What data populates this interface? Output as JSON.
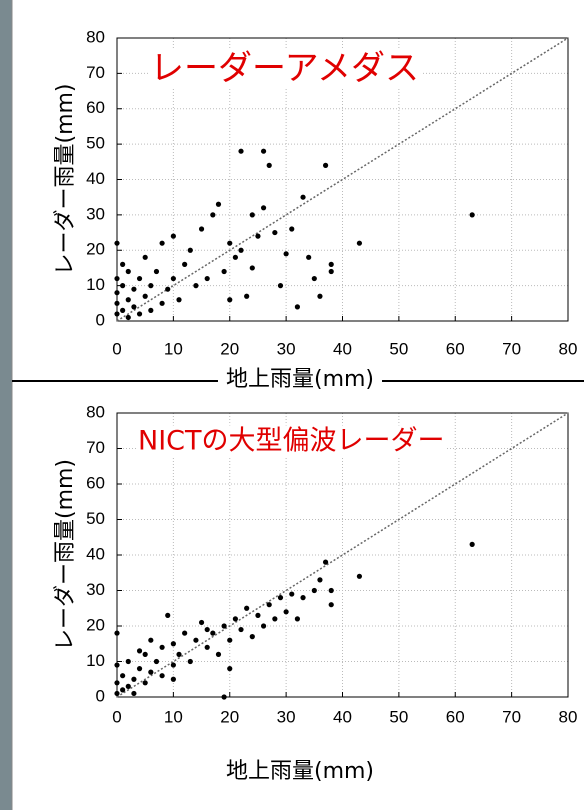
{
  "chart_data": [
    {
      "type": "scatter",
      "annotation": "レーダーアメダス",
      "xlabel": "地上雨量(mm)",
      "ylabel": "レーダー雨量(mm)",
      "color": "#000000",
      "grid": true,
      "xlim": [
        0,
        80
      ],
      "ylim": [
        0,
        80
      ],
      "xticks": [
        0,
        10,
        20,
        30,
        40,
        50,
        60,
        70,
        80
      ],
      "yticks": [
        0,
        10,
        20,
        30,
        40,
        50,
        60,
        70,
        80
      ],
      "x": [
        0,
        0,
        0,
        0,
        0,
        1,
        1,
        1,
        2,
        2,
        2,
        3,
        3,
        4,
        4,
        5,
        5,
        6,
        6,
        7,
        8,
        8,
        9,
        10,
        10,
        11,
        12,
        13,
        14,
        15,
        16,
        17,
        18,
        19,
        20,
        21,
        22,
        22,
        23,
        24,
        25,
        26,
        26,
        27,
        28,
        29,
        30,
        31,
        32,
        33,
        34,
        35,
        37,
        38,
        38,
        43,
        63,
        36,
        20,
        24
      ],
      "values": [
        2,
        5,
        8,
        12,
        22,
        3,
        10,
        16,
        1,
        6,
        14,
        4,
        9,
        2,
        12,
        7,
        18,
        3,
        10,
        14,
        5,
        22,
        9,
        12,
        24,
        6,
        16,
        20,
        10,
        26,
        12,
        30,
        33,
        14,
        22,
        18,
        20,
        48,
        7,
        30,
        24,
        48,
        32,
        44,
        25,
        10,
        19,
        26,
        4,
        35,
        18,
        12,
        44,
        16,
        14,
        22,
        30,
        7,
        6,
        15
      ]
    },
    {
      "type": "scatter",
      "annotation": "NICTの大型偏波レーダー",
      "xlabel": "地上雨量(mm)",
      "ylabel": "レーダー雨量(mm)",
      "color": "#000000",
      "grid": true,
      "xlim": [
        0,
        80
      ],
      "ylim": [
        0,
        80
      ],
      "xticks": [
        0,
        10,
        20,
        30,
        40,
        50,
        60,
        70,
        80
      ],
      "yticks": [
        0,
        10,
        20,
        30,
        40,
        50,
        60,
        70,
        80
      ],
      "x": [
        0,
        0,
        0,
        0,
        1,
        1,
        2,
        2,
        3,
        3,
        4,
        5,
        5,
        6,
        7,
        8,
        8,
        9,
        10,
        10,
        11,
        12,
        13,
        14,
        15,
        16,
        17,
        18,
        19,
        20,
        21,
        22,
        23,
        24,
        25,
        26,
        27,
        28,
        29,
        30,
        31,
        32,
        33,
        35,
        36,
        37,
        38,
        38,
        43,
        63,
        20,
        16,
        10,
        19,
        6,
        4
      ],
      "values": [
        1,
        4,
        9,
        18,
        2,
        6,
        3,
        10,
        1,
        5,
        8,
        4,
        12,
        7,
        10,
        6,
        14,
        23,
        9,
        15,
        12,
        18,
        10,
        16,
        21,
        14,
        18,
        12,
        20,
        16,
        22,
        19,
        25,
        17,
        23,
        20,
        26,
        22,
        28,
        24,
        29,
        22,
        28,
        30,
        33,
        38,
        26,
        30,
        34,
        43,
        8,
        19,
        5,
        0,
        16,
        13
      ]
    }
  ]
}
